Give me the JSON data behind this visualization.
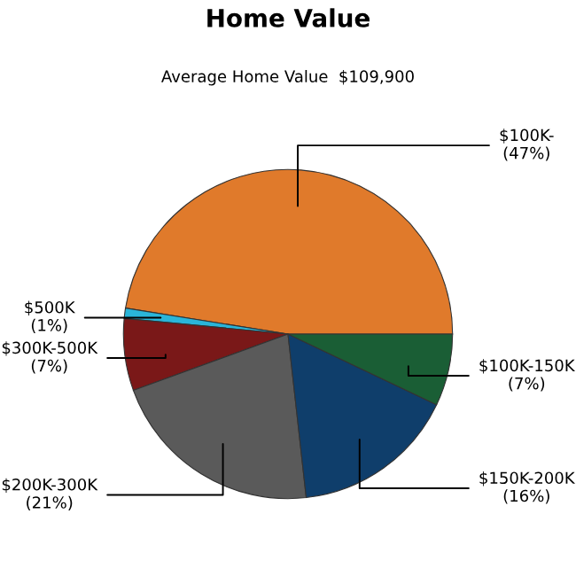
{
  "chart_data": {
    "type": "pie",
    "title": "Home Value",
    "subtitle": "Average Home Value  $109,900",
    "categories": [
      "$100K-",
      "$500K",
      "$300K-500K",
      "$200K-300K",
      "$150K-200K",
      "$100K-150K"
    ],
    "values": [
      47,
      1,
      7,
      21,
      16,
      7
    ],
    "value_labels": [
      "(47%)",
      "(1%)",
      "(7%)",
      "(21%)",
      "(16%)",
      "(7%)"
    ],
    "colors": [
      "#e07a2b",
      "#2ab5d9",
      "#7a1818",
      "#5a5a5a",
      "#0f3e6b",
      "#1a5e35"
    ]
  }
}
